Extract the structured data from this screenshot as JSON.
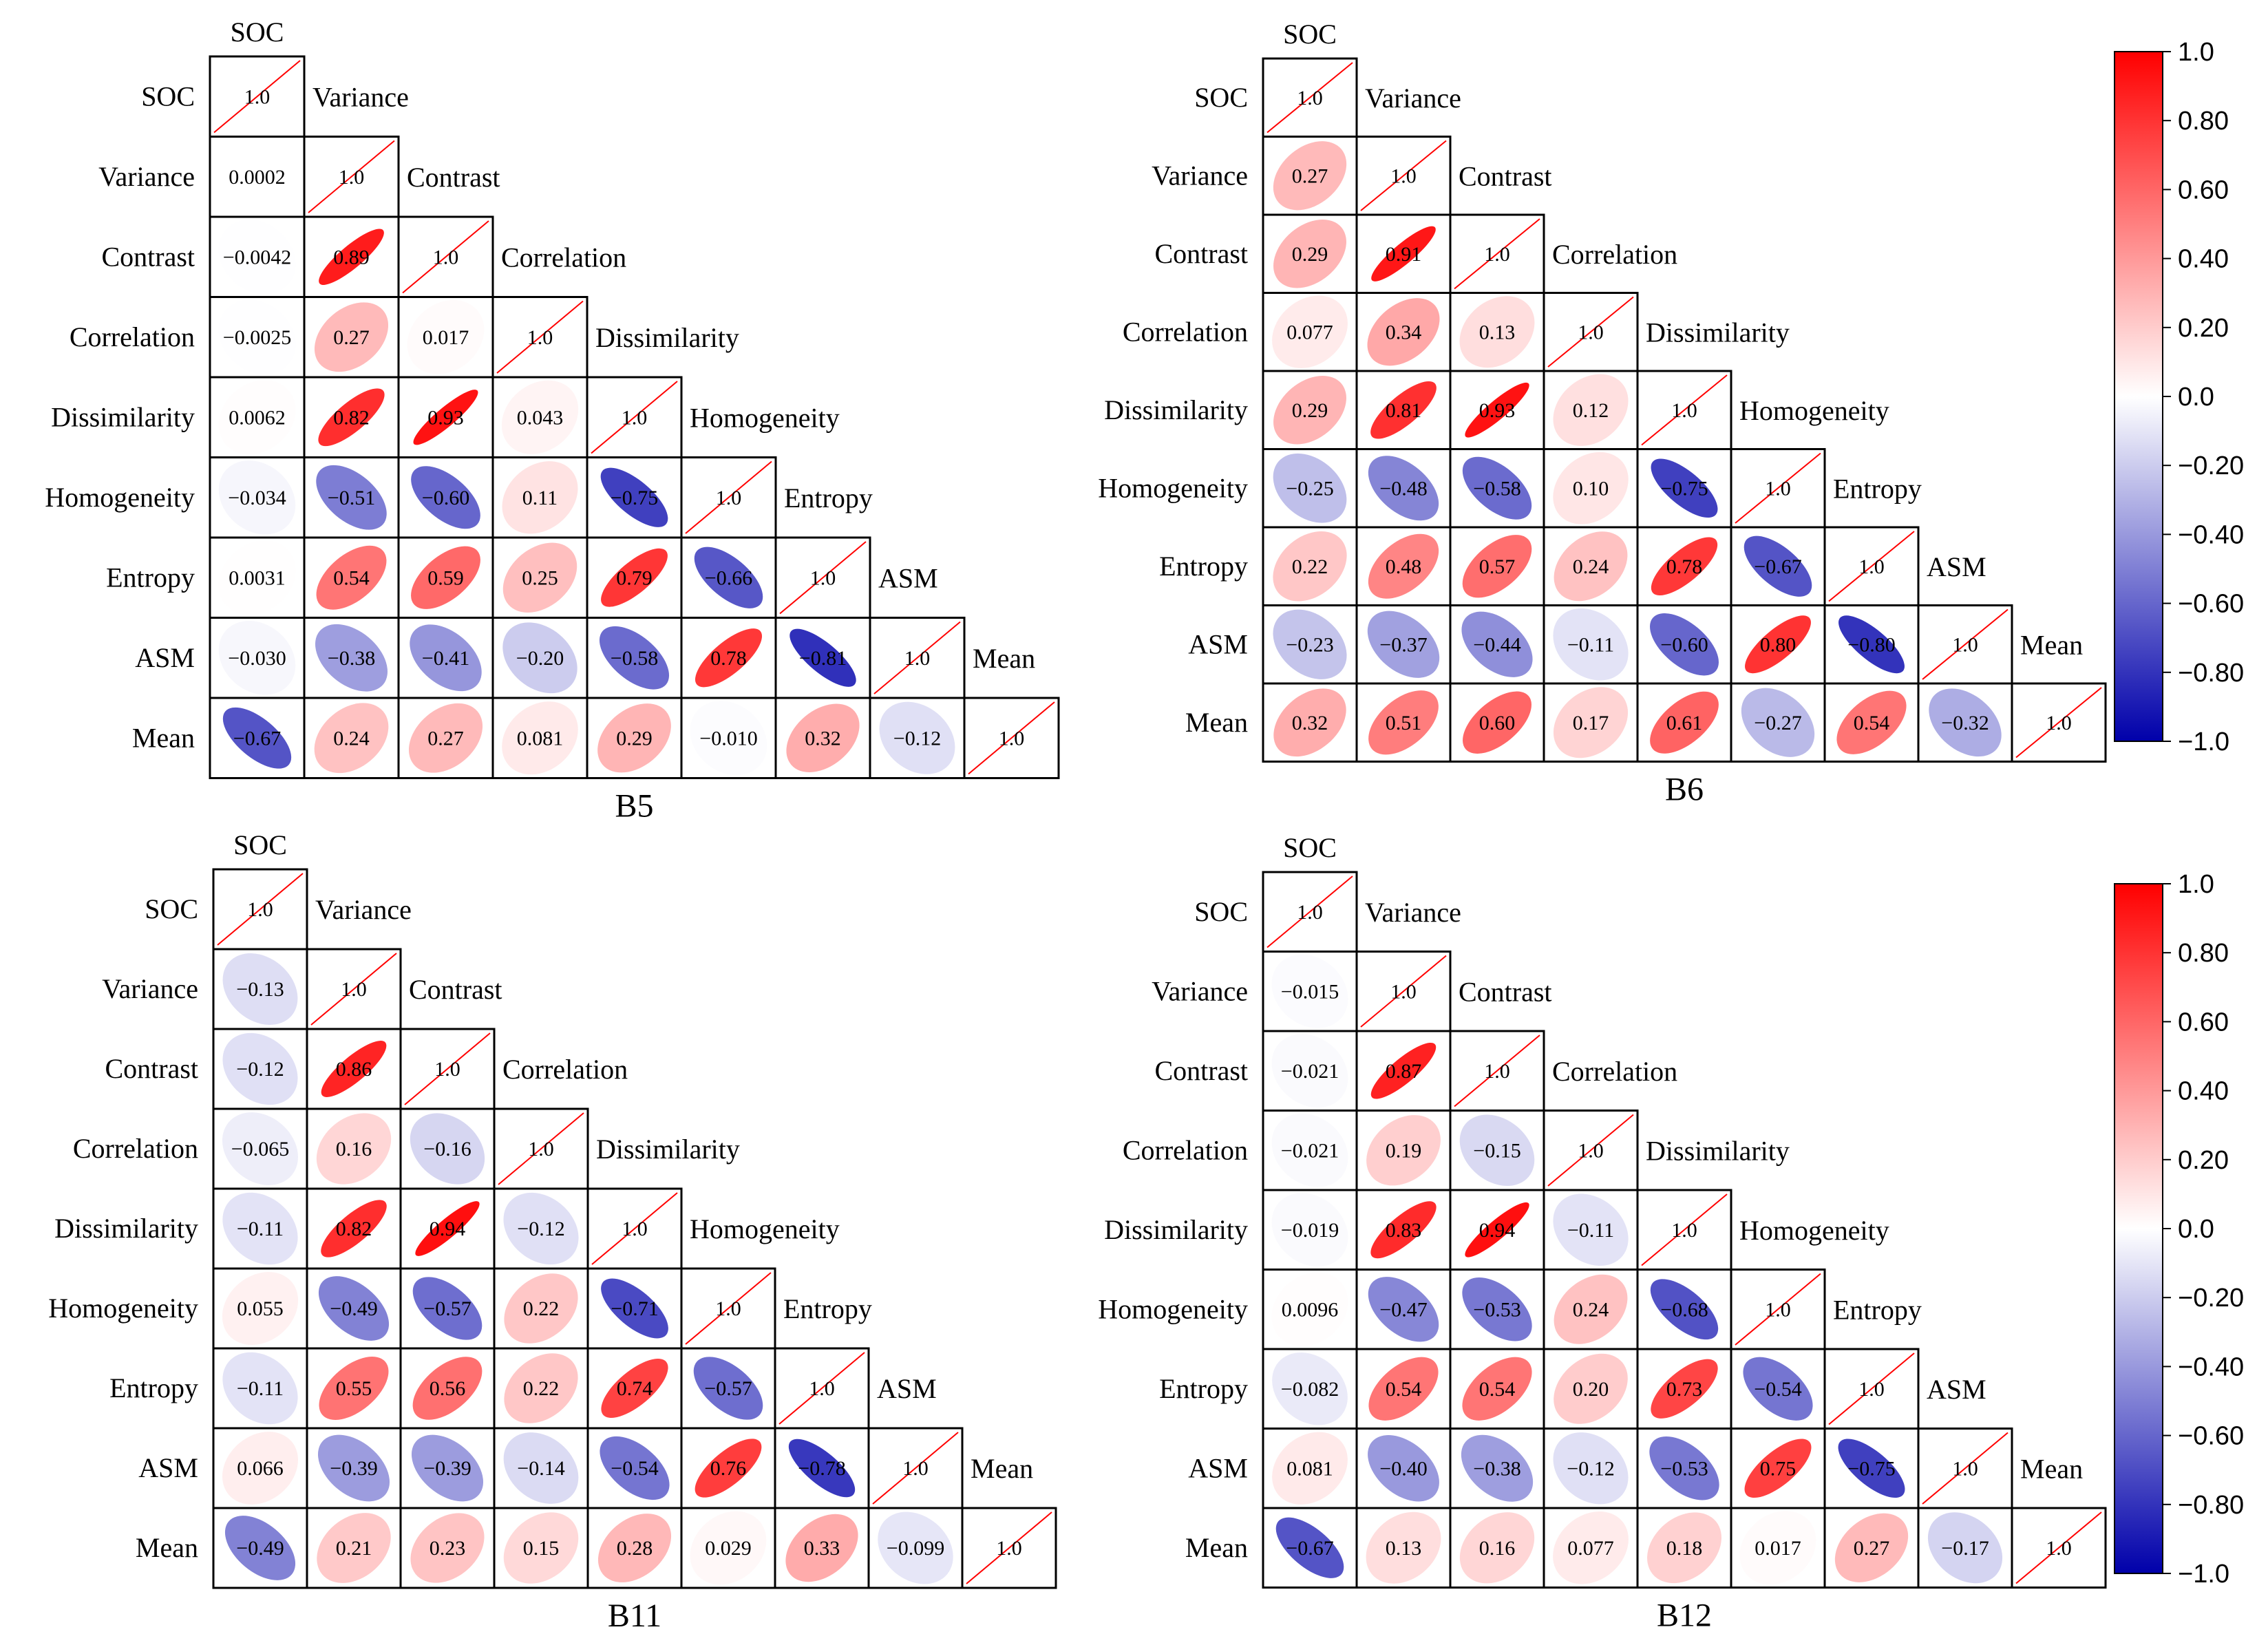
{
  "chart_data": {
    "type": "heatmap",
    "variables": [
      "SOC",
      "Variance",
      "Contrast",
      "Correlation",
      "Dissimilarity",
      "Homogeneity",
      "Entropy",
      "ASM",
      "Mean"
    ],
    "panels": [
      {
        "title": "B5",
        "matrix": [
          [
            "1.0"
          ],
          [
            "0.0002",
            "1.0"
          ],
          [
            "−0.0042",
            "0.89",
            "1.0"
          ],
          [
            "−0.0025",
            "0.27",
            "0.017",
            "1.0"
          ],
          [
            "0.0062",
            "0.82",
            "0.93",
            "0.043",
            "1.0"
          ],
          [
            "−0.034",
            "−0.51",
            "−0.60",
            "0.11",
            "−0.75",
            "1.0"
          ],
          [
            "0.0031",
            "0.54",
            "0.59",
            "0.25",
            "0.79",
            "−0.66",
            "1.0"
          ],
          [
            "−0.030",
            "−0.38",
            "−0.41",
            "−0.20",
            "−0.58",
            "0.78",
            "−0.81",
            "1.0"
          ],
          [
            "−0.67",
            "0.24",
            "0.27",
            "0.081",
            "0.29",
            "−0.010",
            "0.32",
            "−0.12",
            "1.0"
          ]
        ]
      },
      {
        "title": "B6",
        "matrix": [
          [
            "1.0"
          ],
          [
            "0.27",
            "1.0"
          ],
          [
            "0.29",
            "0.91",
            "1.0"
          ],
          [
            "0.077",
            "0.34",
            "0.13",
            "1.0"
          ],
          [
            "0.29",
            "0.81",
            "0.93",
            "0.12",
            "1.0"
          ],
          [
            "−0.25",
            "−0.48",
            "−0.58",
            "0.10",
            "−0.75",
            "1.0"
          ],
          [
            "0.22",
            "0.48",
            "0.57",
            "0.24",
            "0.78",
            "−0.67",
            "1.0"
          ],
          [
            "−0.23",
            "−0.37",
            "−0.44",
            "−0.11",
            "−0.60",
            "0.80",
            "−0.80",
            "1.0"
          ],
          [
            "0.32",
            "0.51",
            "0.60",
            "0.17",
            "0.61",
            "−0.27",
            "0.54",
            "−0.32",
            "1.0"
          ]
        ]
      },
      {
        "title": "B11",
        "matrix": [
          [
            "1.0"
          ],
          [
            "−0.13",
            "1.0"
          ],
          [
            "−0.12",
            "0.86",
            "1.0"
          ],
          [
            "−0.065",
            "0.16",
            "−0.16",
            "1.0"
          ],
          [
            "−0.11",
            "0.82",
            "0.94",
            "−0.12",
            "1.0"
          ],
          [
            "0.055",
            "−0.49",
            "−0.57",
            "0.22",
            "−0.71",
            "1.0"
          ],
          [
            "−0.11",
            "0.55",
            "0.56",
            "0.22",
            "0.74",
            "−0.57",
            "1.0"
          ],
          [
            "0.066",
            "−0.39",
            "−0.39",
            "−0.14",
            "−0.54",
            "0.76",
            "−0.78",
            "1.0"
          ],
          [
            "−0.49",
            "0.21",
            "0.23",
            "0.15",
            "0.28",
            "0.029",
            "0.33",
            "−0.099",
            "1.0"
          ]
        ]
      },
      {
        "title": "B12",
        "matrix": [
          [
            "1.0"
          ],
          [
            "−0.015",
            "1.0"
          ],
          [
            "−0.021",
            "0.87",
            "1.0"
          ],
          [
            "−0.021",
            "0.19",
            "−0.15",
            "1.0"
          ],
          [
            "−0.019",
            "0.83",
            "0.94",
            "−0.11",
            "1.0"
          ],
          [
            "0.0096",
            "−0.47",
            "−0.53",
            "0.24",
            "−0.68",
            "1.0"
          ],
          [
            "−0.082",
            "0.54",
            "0.54",
            "0.20",
            "0.73",
            "−0.54",
            "1.0"
          ],
          [
            "0.081",
            "−0.40",
            "−0.38",
            "−0.12",
            "−0.53",
            "0.75",
            "−0.75",
            "1.0"
          ],
          [
            "−0.67",
            "0.13",
            "0.16",
            "0.077",
            "0.18",
            "0.017",
            "0.27",
            "−0.17",
            "1.0"
          ]
        ]
      }
    ],
    "colorbar": {
      "range": [
        -1.0,
        1.0
      ],
      "colormap": "blue-white-red",
      "ticks": [
        "1.0",
        "0.80",
        "0.60",
        "0.40",
        "0.20",
        "0.0",
        "−0.20",
        "−0.40",
        "−0.60",
        "−0.80",
        "−1.0"
      ]
    },
    "colors": {
      "positive": "#ff0000",
      "neutral": "#ffffff",
      "negative": "#0000aa",
      "diagonal_line": "#ff0000"
    }
  }
}
